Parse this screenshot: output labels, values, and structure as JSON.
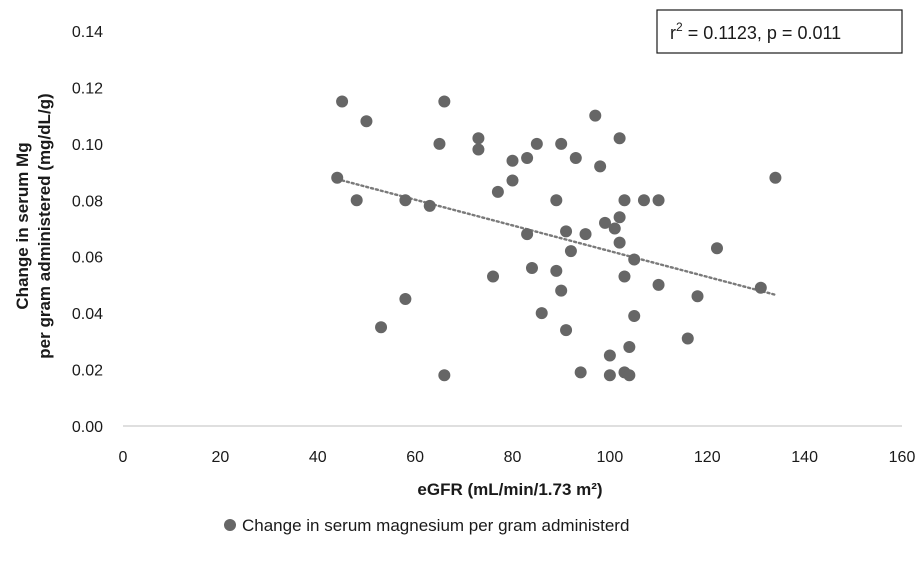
{
  "chart_data": {
    "type": "scatter",
    "xlabel": "eGFR (mL/min/1.73 m²)",
    "ylabel_lines": [
      "Change in serum Mg",
      "per gram administered (mg/dL/g)"
    ],
    "xlim": [
      0,
      160
    ],
    "ylim": [
      0,
      0.14
    ],
    "xticks": [
      0,
      20,
      40,
      60,
      80,
      100,
      120,
      140,
      160
    ],
    "yticks": [
      0.0,
      0.02,
      0.04,
      0.06,
      0.08,
      0.1,
      0.12,
      0.14
    ],
    "ytick_labels": [
      "0.00",
      "0.02",
      "0.04",
      "0.06",
      "0.08",
      "0.10",
      "0.12",
      "0.14"
    ],
    "grid": false,
    "legend_position": "bottom",
    "annotation": {
      "prefix": "r",
      "superscript": "2",
      "rest": " = 0.1123, p = 0.011"
    },
    "trendline": {
      "style": "dotted",
      "x": [
        44,
        134
      ],
      "y": [
        0.0875,
        0.0465
      ]
    },
    "series": [
      {
        "name": "Change in serum magnesium per gram administerd",
        "color": "#666666",
        "points": [
          [
            44,
            0.088
          ],
          [
            45,
            0.115
          ],
          [
            48,
            0.08
          ],
          [
            50,
            0.108
          ],
          [
            53,
            0.035
          ],
          [
            58,
            0.08
          ],
          [
            58,
            0.045
          ],
          [
            63,
            0.078
          ],
          [
            65,
            0.1
          ],
          [
            66,
            0.115
          ],
          [
            66,
            0.018
          ],
          [
            73,
            0.102
          ],
          [
            73,
            0.098
          ],
          [
            76,
            0.053
          ],
          [
            77,
            0.083
          ],
          [
            80,
            0.094
          ],
          [
            80,
            0.087
          ],
          [
            83,
            0.095
          ],
          [
            83,
            0.068
          ],
          [
            84,
            0.056
          ],
          [
            85,
            0.1
          ],
          [
            86,
            0.04
          ],
          [
            89,
            0.08
          ],
          [
            89,
            0.055
          ],
          [
            90,
            0.1
          ],
          [
            90,
            0.048
          ],
          [
            91,
            0.069
          ],
          [
            91,
            0.034
          ],
          [
            92,
            0.062
          ],
          [
            93,
            0.095
          ],
          [
            94,
            0.019
          ],
          [
            95,
            0.068
          ],
          [
            97,
            0.11
          ],
          [
            98,
            0.092
          ],
          [
            99,
            0.072
          ],
          [
            100,
            0.025
          ],
          [
            100,
            0.018
          ],
          [
            101,
            0.07
          ],
          [
            102,
            0.102
          ],
          [
            102,
            0.074
          ],
          [
            102,
            0.065
          ],
          [
            103,
            0.08
          ],
          [
            103,
            0.053
          ],
          [
            103,
            0.019
          ],
          [
            104,
            0.028
          ],
          [
            104,
            0.018
          ],
          [
            105,
            0.059
          ],
          [
            105,
            0.039
          ],
          [
            107,
            0.08
          ],
          [
            110,
            0.08
          ],
          [
            110,
            0.05
          ],
          [
            116,
            0.031
          ],
          [
            118,
            0.046
          ],
          [
            122,
            0.063
          ],
          [
            131,
            0.049
          ],
          [
            134,
            0.088
          ]
        ]
      }
    ]
  }
}
